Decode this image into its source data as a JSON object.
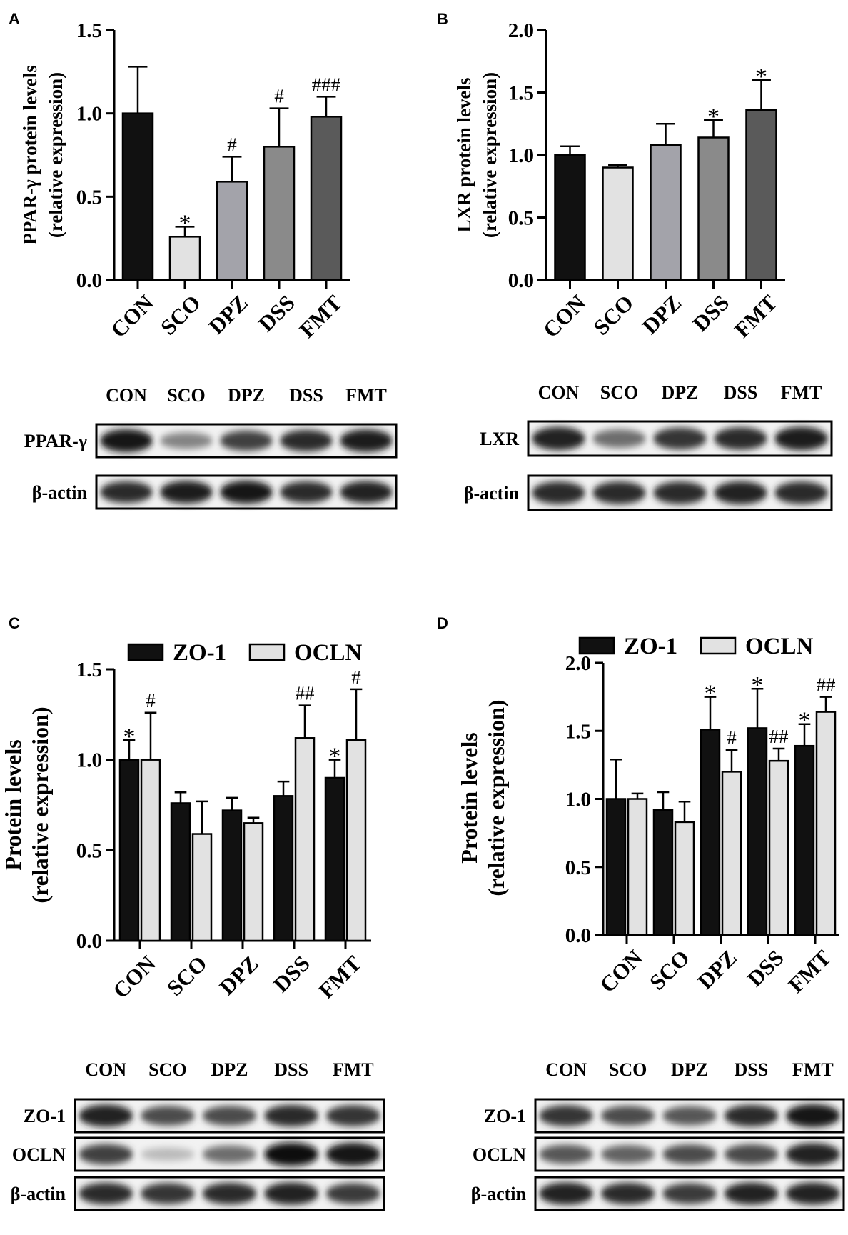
{
  "panels": [
    {
      "letter": "A",
      "chart_data": {
        "type": "bar",
        "title": "",
        "ylabel_lines": [
          "PPAR-γ protein levels",
          "(relative expression)"
        ],
        "xlabel": "",
        "categories": [
          "CON",
          "SCO",
          "DPZ",
          "DSS",
          "FMT"
        ],
        "series": [
          {
            "values": [
              1.0,
              0.26,
              0.59,
              0.8,
              0.98
            ],
            "errors": [
              0.28,
              0.06,
              0.15,
              0.23,
              0.12
            ],
            "fills": [
              "#111111",
              "#e2e2e2",
              "#a3a3aa",
              "#8a8a8a",
              "#5a5a5a"
            ],
            "annotations": [
              "",
              "*",
              "#",
              "#",
              "###"
            ]
          }
        ],
        "ylim": [
          0,
          1.5
        ],
        "yticks": [
          0.0,
          0.5,
          1.0,
          1.5
        ],
        "ytick_labels": [
          "0.0",
          "0.5",
          "1.0",
          "1.5"
        ],
        "grid": false,
        "legend": null
      },
      "blot": {
        "lanes": [
          "CON",
          "SCO",
          "DPZ",
          "DSS",
          "FMT"
        ],
        "rows": [
          {
            "label": "PPAR-γ",
            "intensity": [
              0.95,
              0.45,
              0.75,
              0.85,
              0.92
            ]
          },
          {
            "label": "β-actin",
            "intensity": [
              0.85,
              0.92,
              0.95,
              0.85,
              0.88
            ]
          }
        ]
      }
    },
    {
      "letter": "B",
      "chart_data": {
        "type": "bar",
        "title": "",
        "ylabel_lines": [
          "LXR protein levels",
          "(relative expression)"
        ],
        "xlabel": "",
        "categories": [
          "CON",
          "SCO",
          "DPZ",
          "DSS",
          "FMT"
        ],
        "series": [
          {
            "values": [
              1.0,
              0.9,
              1.08,
              1.14,
              1.36
            ],
            "errors": [
              0.07,
              0.02,
              0.17,
              0.14,
              0.24
            ],
            "fills": [
              "#111111",
              "#e2e2e2",
              "#a3a3aa",
              "#8a8a8a",
              "#5a5a5a"
            ],
            "annotations": [
              "",
              "",
              "",
              "*",
              "*"
            ]
          }
        ],
        "ylim": [
          0,
          2.0
        ],
        "yticks": [
          0.0,
          0.5,
          1.0,
          1.5,
          2.0
        ],
        "ytick_labels": [
          "0.0",
          "0.5",
          "1.0",
          "1.5",
          "2.0"
        ],
        "grid": false,
        "legend": null
      },
      "blot": {
        "lanes": [
          "CON",
          "SCO",
          "DPZ",
          "DSS",
          "FMT"
        ],
        "rows": [
          {
            "label": "LXR",
            "intensity": [
              0.9,
              0.55,
              0.8,
              0.85,
              0.92
            ]
          },
          {
            "label": "β-actin",
            "intensity": [
              0.85,
              0.85,
              0.85,
              0.88,
              0.85
            ]
          }
        ]
      }
    },
    {
      "letter": "C",
      "chart_data": {
        "type": "bar",
        "title": "",
        "ylabel_lines": [
          "Protein levels",
          "(relative expression)"
        ],
        "xlabel": "",
        "categories": [
          "CON",
          "SCO",
          "DPZ",
          "DSS",
          "FMT"
        ],
        "series": [
          {
            "name": "ZO-1",
            "fill": "#111111",
            "values": [
              1.0,
              0.76,
              0.72,
              0.8,
              0.9
            ],
            "errors": [
              0.11,
              0.06,
              0.07,
              0.08,
              0.1
            ],
            "annotations": [
              "*",
              "",
              "",
              "",
              "*"
            ]
          },
          {
            "name": "OCLN",
            "fill": "#e2e2e2",
            "values": [
              1.0,
              0.59,
              0.65,
              1.12,
              1.11
            ],
            "errors": [
              0.26,
              0.18,
              0.03,
              0.18,
              0.28
            ],
            "annotations": [
              "#",
              "",
              "",
              "##",
              "#"
            ]
          }
        ],
        "ylim": [
          0,
          1.5
        ],
        "yticks": [
          0.0,
          0.5,
          1.0,
          1.5
        ],
        "ytick_labels": [
          "0.0",
          "0.5",
          "1.0",
          "1.5"
        ],
        "grid": false,
        "legend": "top"
      },
      "blot": {
        "lanes": [
          "CON",
          "SCO",
          "DPZ",
          "DSS",
          "FMT"
        ],
        "rows": [
          {
            "label": "ZO-1",
            "intensity": [
              0.9,
              0.7,
              0.7,
              0.85,
              0.8
            ]
          },
          {
            "label": "OCLN",
            "intensity": [
              0.75,
              0.2,
              0.55,
              0.98,
              0.95
            ]
          },
          {
            "label": "β-actin",
            "intensity": [
              0.85,
              0.8,
              0.85,
              0.9,
              0.78
            ]
          }
        ]
      }
    },
    {
      "letter": "D",
      "chart_data": {
        "type": "bar",
        "title": "",
        "ylabel_lines": [
          "Protein levels",
          "(relative expression)"
        ],
        "xlabel": "",
        "categories": [
          "CON",
          "SCO",
          "DPZ",
          "DSS",
          "FMT"
        ],
        "series": [
          {
            "name": "ZO-1",
            "fill": "#111111",
            "values": [
              1.0,
              0.92,
              1.51,
              1.52,
              1.39
            ],
            "errors": [
              0.29,
              0.13,
              0.24,
              0.29,
              0.16
            ],
            "annotations": [
              "",
              "",
              "*",
              "*",
              "*"
            ]
          },
          {
            "name": "OCLN",
            "fill": "#e2e2e2",
            "values": [
              1.0,
              0.83,
              1.2,
              1.28,
              1.64
            ],
            "errors": [
              0.04,
              0.15,
              0.16,
              0.09,
              0.11
            ],
            "annotations": [
              "",
              "",
              "#",
              "##",
              "##"
            ]
          }
        ],
        "ylim": [
          0,
          2.0
        ],
        "yticks": [
          0.0,
          0.5,
          1.0,
          1.5,
          2.0
        ],
        "ytick_labels": [
          "0.0",
          "0.5",
          "1.0",
          "1.5",
          "2.0"
        ],
        "grid": false,
        "legend": "top"
      },
      "blot": {
        "lanes": [
          "CON",
          "SCO",
          "DPZ",
          "DSS",
          "FMT"
        ],
        "rows": [
          {
            "label": "ZO-1",
            "intensity": [
              0.8,
              0.7,
              0.65,
              0.85,
              0.95
            ]
          },
          {
            "label": "OCLN",
            "intensity": [
              0.65,
              0.6,
              0.7,
              0.72,
              0.9
            ]
          },
          {
            "label": "β-actin",
            "intensity": [
              0.9,
              0.85,
              0.78,
              0.88,
              0.88
            ]
          }
        ]
      }
    }
  ]
}
